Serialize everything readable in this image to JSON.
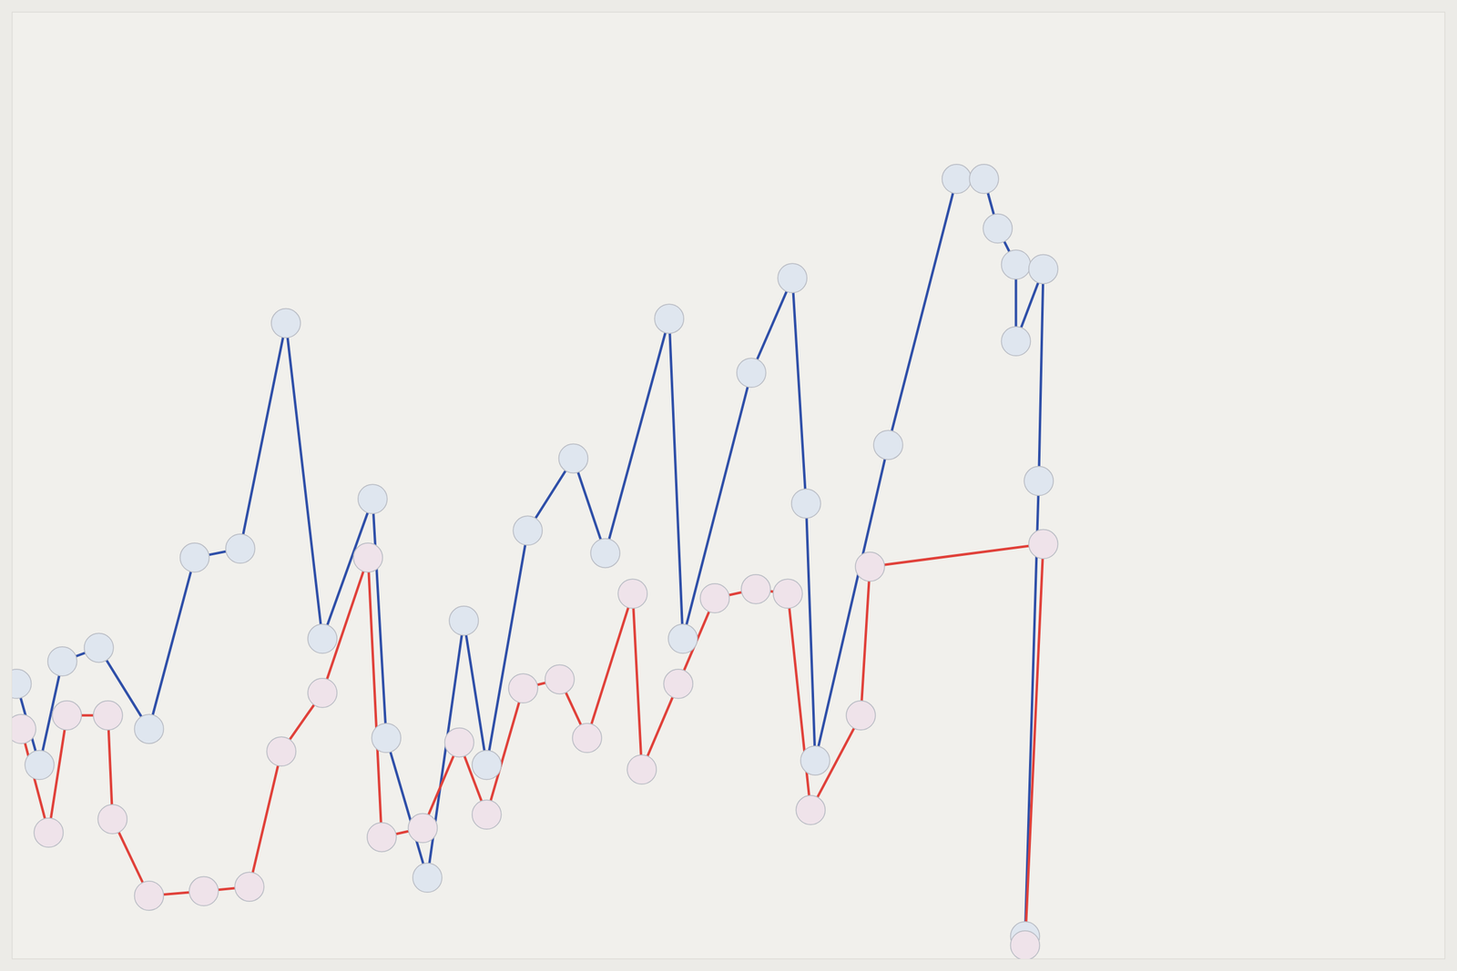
{
  "chart_data": {
    "type": "line",
    "tick_labels": false,
    "grid": false,
    "marker": "circle",
    "xlim": [
      0,
      157
    ],
    "ylim": [
      0,
      105
    ],
    "series": [
      {
        "color": "#2f4fa8",
        "x": [
          0.5,
          3,
          5.5,
          9.5,
          15,
          20,
          25,
          30,
          34,
          39.5,
          41,
          45.5,
          49.5,
          52,
          56.5,
          61.5,
          65,
          72,
          73.5,
          81,
          85.5,
          87,
          88,
          96,
          103.5,
          106.5,
          108,
          110,
          110,
          113,
          112.5,
          111
        ],
        "values": [
          30.5,
          21.5,
          33,
          34.5,
          25.5,
          44.5,
          45.5,
          70.5,
          35.5,
          51,
          24.5,
          9,
          37.5,
          21.5,
          47.5,
          55.5,
          45,
          71,
          35.5,
          65,
          75.5,
          50.5,
          22,
          57,
          86.5,
          86.5,
          81,
          77,
          68.5,
          76.5,
          53,
          2.5
        ]
      },
      {
        "color": "#e0413a",
        "x": [
          1,
          4,
          6,
          10.5,
          11,
          15,
          21,
          26,
          29.5,
          34,
          39,
          40.5,
          45,
          49,
          52,
          56,
          60,
          63,
          68,
          69,
          73,
          77,
          81.5,
          85,
          87.5,
          93,
          94,
          113,
          111
        ],
        "values": [
          25.5,
          14,
          27,
          27,
          15.5,
          7,
          7.5,
          8,
          23,
          29.5,
          44.5,
          13.5,
          14.5,
          24,
          16,
          30,
          31,
          24.5,
          40.5,
          21,
          30.5,
          40,
          41,
          40.5,
          16.5,
          27,
          43.5,
          46,
          1.5
        ]
      }
    ]
  }
}
